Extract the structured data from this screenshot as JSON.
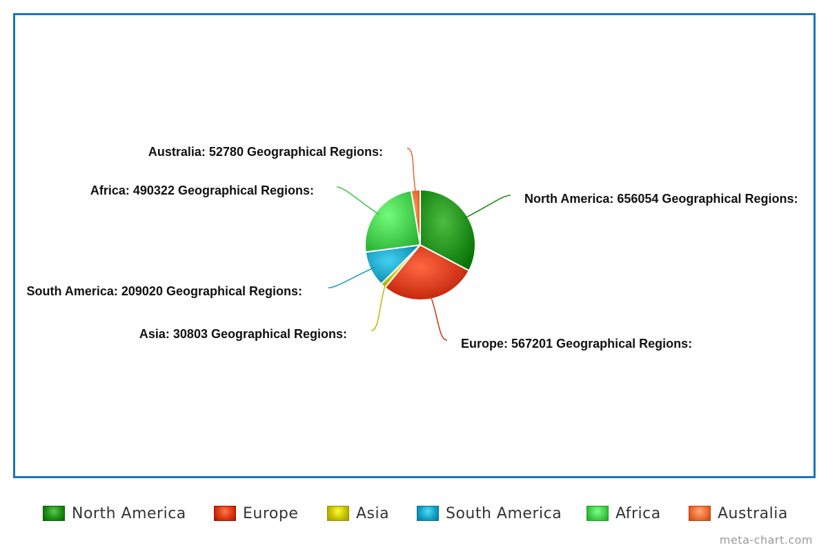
{
  "chart_data": {
    "type": "pie",
    "categories": [
      "North America",
      "Europe",
      "Asia",
      "South America",
      "Africa",
      "Australia"
    ],
    "values": [
      656054,
      567201,
      30803,
      209020,
      490322,
      52780
    ],
    "data_labels": [
      "North America: 656054 Geographical Regions:",
      "Europe: 567201 Geographical Regions:",
      "Asia: 30803 Geographical Regions:",
      "South America: 209020 Geographical Regions:",
      "Africa: 490322 Geographical Regions:",
      "Australia: 52780 Geographical Regions:"
    ],
    "colors": [
      "#1f8f12",
      "#d93a12",
      "#c8c200",
      "#16a2c4",
      "#46cf4e",
      "#ec6f35"
    ],
    "legend_placement": "bottom",
    "start_angle": "top",
    "direction": "clockwise"
  },
  "legend": {
    "items": [
      {
        "label": "North America",
        "color": "#1f8f12"
      },
      {
        "label": "Europe",
        "color": "#d93a12"
      },
      {
        "label": "Asia",
        "color": "#c8c200"
      },
      {
        "label": "South America",
        "color": "#16a2c4"
      },
      {
        "label": "Africa",
        "color": "#46cf4e"
      },
      {
        "label": "Australia",
        "color": "#ec6f35"
      }
    ]
  },
  "watermark": "meta-chart.com"
}
